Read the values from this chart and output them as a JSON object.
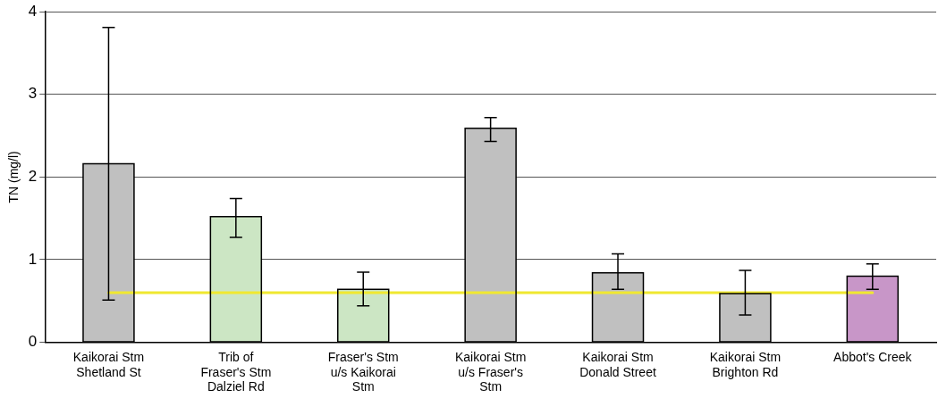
{
  "chart_data": {
    "type": "bar",
    "ylabel": "TN (mg/l)",
    "categories": [
      "Kaikorai Stm Shetland St",
      "Trib of Fraser's Stm Dalziel Rd",
      "Fraser's Stm u/s Kaikorai Stm",
      "Kaikorai Stm u/s Fraser's Stm",
      "Kaikorai Stm Donald Street",
      "Kaikorai Stm Brighton Rd",
      "Abbot's Creek"
    ],
    "series": [
      {
        "colors": [
          "#c0c0c0",
          "#cce6c4",
          "#cce6c4",
          "#c0c0c0",
          "#c0c0c0",
          "#c0c0c0",
          "#c896c8"
        ],
        "values": [
          2.16,
          1.52,
          0.64,
          2.59,
          0.84,
          0.59,
          0.8
        ],
        "errors": [
          [
            0.51,
            3.81
          ],
          [
            1.27,
            1.74
          ],
          [
            0.44,
            0.85
          ],
          [
            2.43,
            2.72
          ],
          [
            0.64,
            1.07
          ],
          [
            0.33,
            0.87
          ],
          [
            0.64,
            0.95
          ]
        ]
      },
      {
        "type": "line",
        "color": "#f0e830",
        "values": [
          0.6,
          0.6,
          0.6,
          0.6,
          0.6,
          0.6,
          0.6
        ]
      }
    ],
    "ylim": [
      0,
      4
    ],
    "yticks": [
      0,
      1,
      2,
      3,
      4
    ],
    "grid": "y",
    "legend": false,
    "marker": "none"
  }
}
